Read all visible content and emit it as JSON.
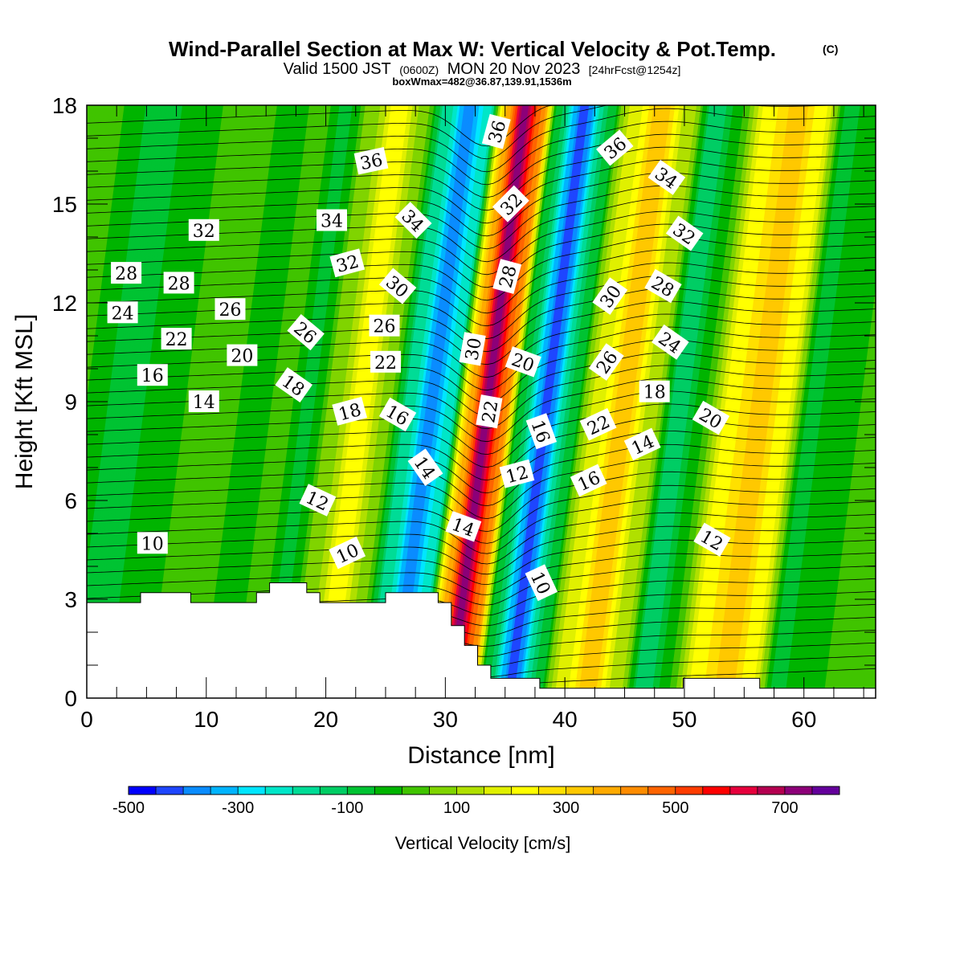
{
  "chart_data": {
    "type": "heatmap",
    "title": "Wind-Parallel Section at Max W: Vertical Velocity & Pot.Temp.",
    "title_mark": "(C)",
    "subtitle_parts": [
      "Valid 1500 JST",
      "(0600Z)",
      "MON 20 Nov 2023",
      "[24hrFcst@1254z]"
    ],
    "subtitle2": "boxWmax=482@36.87,139.91,1536m",
    "xlabel": "Distance [nm]",
    "ylabel": "Height [Kft MSL]",
    "xlim": [
      0,
      66
    ],
    "ylim": [
      0,
      18
    ],
    "x_ticks": [
      0,
      10,
      20,
      30,
      40,
      50,
      60
    ],
    "x_tick_labels": [
      "0",
      "10",
      "20",
      "30",
      "40",
      "50",
      "60"
    ],
    "y_ticks": [
      0,
      3,
      6,
      9,
      12,
      15,
      18
    ],
    "y_tick_labels": [
      "0",
      "3",
      "6",
      "9",
      "12",
      "15",
      "18"
    ],
    "colorbar": {
      "label": "Vertical Velocity [cm/s]",
      "min": -500,
      "max": 750,
      "step": 50,
      "tick_values": [
        -500,
        -300,
        -100,
        100,
        300,
        500,
        700
      ],
      "tick_labels": [
        "-500",
        "-300",
        "-100",
        "100",
        "300",
        "500",
        "700"
      ],
      "colors": [
        "#0000ff",
        "#1e46ff",
        "#0a8cff",
        "#00b4ff",
        "#00e6ff",
        "#00e6c8",
        "#00dc96",
        "#00cd64",
        "#00c332",
        "#00b400",
        "#40c400",
        "#80d400",
        "#b0e000",
        "#e0f000",
        "#ffff00",
        "#ffe000",
        "#ffc800",
        "#ffaa00",
        "#ff8c00",
        "#ff6400",
        "#ff3c00",
        "#ff0000",
        "#e6003c",
        "#b40050",
        "#8c0078",
        "#64009b"
      ]
    },
    "w_bands_cm_s": [
      {
        "x": 0,
        "w": -60
      },
      {
        "x": 3,
        "w": -130
      },
      {
        "x": 7,
        "w": -60
      },
      {
        "x": 11,
        "w": -10
      },
      {
        "x": 14,
        "w": -80
      },
      {
        "x": 16.5,
        "w": -30
      },
      {
        "x": 18.5,
        "w": -120
      },
      {
        "x": 21,
        "w": 40
      },
      {
        "x": 23,
        "w": 200
      },
      {
        "x": 25,
        "w": 30
      },
      {
        "x": 27,
        "w": -220
      },
      {
        "x": 28.8,
        "w": -440
      },
      {
        "x": 30.5,
        "w": -260
      },
      {
        "x": 32,
        "w": 300
      },
      {
        "x": 33.5,
        "w": 680
      },
      {
        "x": 35,
        "w": 380
      },
      {
        "x": 36.3,
        "w": -120
      },
      {
        "x": 38.5,
        "w": -480
      },
      {
        "x": 40.5,
        "w": -150
      },
      {
        "x": 42.5,
        "w": 120
      },
      {
        "x": 45,
        "w": 280
      },
      {
        "x": 47.5,
        "w": 60
      },
      {
        "x": 49.5,
        "w": -200
      },
      {
        "x": 51.5,
        "w": -60
      },
      {
        "x": 54,
        "w": 180
      },
      {
        "x": 56.5,
        "w": 290
      },
      {
        "x": 58.5,
        "w": 160
      },
      {
        "x": 60.5,
        "w": -110
      },
      {
        "x": 63,
        "w": -80
      },
      {
        "x": 66,
        "w": -30
      }
    ],
    "terrain_kft": [
      [
        0,
        2.9
      ],
      [
        4.5,
        2.9
      ],
      [
        4.5,
        3.2
      ],
      [
        8.7,
        3.2
      ],
      [
        8.7,
        2.9
      ],
      [
        14.2,
        2.9
      ],
      [
        14.2,
        3.2
      ],
      [
        15.3,
        3.2
      ],
      [
        15.3,
        3.5
      ],
      [
        18.4,
        3.5
      ],
      [
        18.4,
        3.2
      ],
      [
        19.5,
        3.2
      ],
      [
        19.5,
        2.9
      ],
      [
        25,
        2.9
      ],
      [
        25,
        3.2
      ],
      [
        29.4,
        3.2
      ],
      [
        29.4,
        2.9
      ],
      [
        30.5,
        2.9
      ],
      [
        30.5,
        2.2
      ],
      [
        31.6,
        2.2
      ],
      [
        31.6,
        1.6
      ],
      [
        32.7,
        1.6
      ],
      [
        32.7,
        1.0
      ],
      [
        33.8,
        1.0
      ],
      [
        33.8,
        0.6
      ],
      [
        37.9,
        0.6
      ],
      [
        37.9,
        0.3
      ],
      [
        49.9,
        0.3
      ],
      [
        49.9,
        0.6
      ],
      [
        56.3,
        0.6
      ],
      [
        56.3,
        0.3
      ],
      [
        66,
        0.3
      ]
    ],
    "contour_labels": [
      {
        "text": "36",
        "x": 23.8,
        "y": 16.3,
        "angle": -12
      },
      {
        "text": "36",
        "x": 34.3,
        "y": 17.2,
        "angle": -75
      },
      {
        "text": "36",
        "x": 44.2,
        "y": 16.7,
        "angle": -40
      },
      {
        "text": "34",
        "x": 20.5,
        "y": 14.5,
        "angle": 0
      },
      {
        "text": "34",
        "x": 27.3,
        "y": 14.5,
        "angle": 45
      },
      {
        "text": "34",
        "x": 48.5,
        "y": 15.8,
        "angle": 35
      },
      {
        "text": "32",
        "x": 9.8,
        "y": 14.2,
        "angle": 0
      },
      {
        "text": "32",
        "x": 21.8,
        "y": 13.2,
        "angle": -15
      },
      {
        "text": "32",
        "x": 35.5,
        "y": 15.0,
        "angle": -45
      },
      {
        "text": "32",
        "x": 50,
        "y": 14.1,
        "angle": 35
      },
      {
        "text": "30",
        "x": 26.0,
        "y": 12.5,
        "angle": 40
      },
      {
        "text": "30",
        "x": 32.3,
        "y": 10.6,
        "angle": -80
      },
      {
        "text": "30",
        "x": 43.8,
        "y": 12.2,
        "angle": -55
      },
      {
        "text": "28",
        "x": 3.3,
        "y": 12.9,
        "angle": 0
      },
      {
        "text": "28",
        "x": 7.7,
        "y": 12.6,
        "angle": 0
      },
      {
        "text": "28",
        "x": 35.2,
        "y": 12.8,
        "angle": -75
      },
      {
        "text": "28",
        "x": 48.2,
        "y": 12.5,
        "angle": 30
      },
      {
        "text": "26",
        "x": 12,
        "y": 11.8,
        "angle": 0
      },
      {
        "text": "26",
        "x": 18.3,
        "y": 11.1,
        "angle": 40
      },
      {
        "text": "26",
        "x": 24.9,
        "y": 11.3,
        "angle": 0
      },
      {
        "text": "26",
        "x": 43.5,
        "y": 10.2,
        "angle": -55
      },
      {
        "text": "24",
        "x": 3.0,
        "y": 11.7,
        "angle": 0
      },
      {
        "text": "24",
        "x": 48.8,
        "y": 10.8,
        "angle": 35
      },
      {
        "text": "22",
        "x": 7.5,
        "y": 10.9,
        "angle": 0
      },
      {
        "text": "22",
        "x": 25.0,
        "y": 10.2,
        "angle": 0
      },
      {
        "text": "22",
        "x": 33.7,
        "y": 8.7,
        "angle": -80
      },
      {
        "text": "22",
        "x": 42.8,
        "y": 8.3,
        "angle": -25
      },
      {
        "text": "20",
        "x": 13.0,
        "y": 10.4,
        "angle": 0
      },
      {
        "text": "20",
        "x": 36.5,
        "y": 10.2,
        "angle": 20
      },
      {
        "text": "20",
        "x": 52.2,
        "y": 8.5,
        "angle": 30
      },
      {
        "text": "18",
        "x": 17.3,
        "y": 9.5,
        "angle": 35
      },
      {
        "text": "18",
        "x": 22.0,
        "y": 8.7,
        "angle": -15
      },
      {
        "text": "18",
        "x": 47.5,
        "y": 9.3,
        "angle": 0
      },
      {
        "text": "16",
        "x": 5.5,
        "y": 9.8,
        "angle": 0
      },
      {
        "text": "16",
        "x": 26.0,
        "y": 8.6,
        "angle": 30
      },
      {
        "text": "16",
        "x": 38.0,
        "y": 8.1,
        "angle": 70
      },
      {
        "text": "16",
        "x": 42.0,
        "y": 6.6,
        "angle": -25
      },
      {
        "text": "14",
        "x": 9.8,
        "y": 9.0,
        "angle": 0
      },
      {
        "text": "14",
        "x": 28.3,
        "y": 7.0,
        "angle": 55
      },
      {
        "text": "14",
        "x": 31.5,
        "y": 5.2,
        "angle": 20
      },
      {
        "text": "14",
        "x": 46.5,
        "y": 7.7,
        "angle": -25
      },
      {
        "text": "12",
        "x": 19.3,
        "y": 6.0,
        "angle": 25
      },
      {
        "text": "12",
        "x": 36.0,
        "y": 6.8,
        "angle": -15
      },
      {
        "text": "12",
        "x": 52.3,
        "y": 4.8,
        "angle": 30
      },
      {
        "text": "10",
        "x": 5.5,
        "y": 4.7,
        "angle": 0
      },
      {
        "text": "10",
        "x": 21.8,
        "y": 4.4,
        "angle": -25
      },
      {
        "text": "10",
        "x": 38.0,
        "y": 3.5,
        "angle": 65
      }
    ]
  }
}
